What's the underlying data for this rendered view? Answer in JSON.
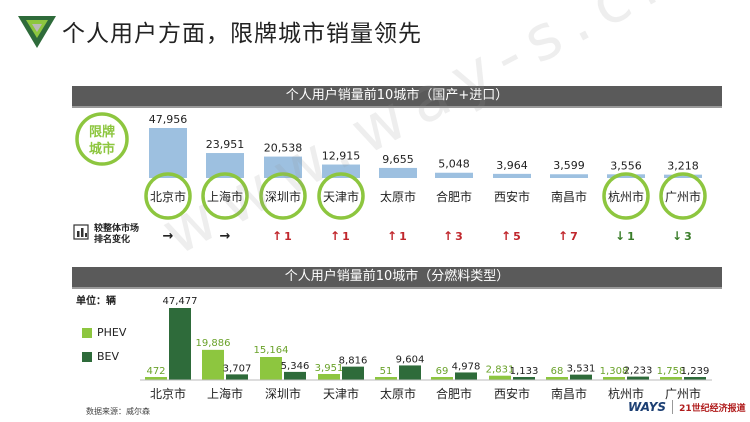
{
  "page": {
    "title": "个人用户方面，限牌城市销量领先",
    "source": "数据来源：威尔森",
    "brand_ways": "WAYS",
    "brand_news": "21世纪经济报道",
    "watermark": "www.way-s.cn"
  },
  "colors": {
    "top_bar": "#9dc0e0",
    "phev": "#8dc63f",
    "bev": "#2e6b3a",
    "circle": "#8dc63f",
    "banner": "#5a5a5a",
    "up_arrow": "#c0262c",
    "down_arrow": "#3a7d2a"
  },
  "chart_data": [
    {
      "type": "bar",
      "title": "个人用户销量前10城市（国产+进口）",
      "categories": [
        "北京市",
        "上海市",
        "深圳市",
        "天津市",
        "太原市",
        "合肥市",
        "西安市",
        "南昌市",
        "杭州市",
        "广州市"
      ],
      "values": [
        47956,
        23951,
        20538,
        12915,
        9655,
        5048,
        3964,
        3599,
        3556,
        3218
      ],
      "value_labels": [
        "47,956",
        "23,951",
        "20,538",
        "12,915",
        "9,655",
        "5,048",
        "3,964",
        "3,599",
        "3,556",
        "3,218"
      ],
      "restricted_label": "限牌城市",
      "restricted": [
        true,
        true,
        true,
        true,
        false,
        false,
        false,
        false,
        true,
        true
      ],
      "rank_change_label": "较整体市场排名变化",
      "rank_change": [
        {
          "dir": "same",
          "text": ""
        },
        {
          "dir": "same",
          "text": ""
        },
        {
          "dir": "up",
          "text": "1"
        },
        {
          "dir": "up",
          "text": "1"
        },
        {
          "dir": "up",
          "text": "1"
        },
        {
          "dir": "up",
          "text": "3"
        },
        {
          "dir": "up",
          "text": "5"
        },
        {
          "dir": "up",
          "text": "7"
        },
        {
          "dir": "down",
          "text": "1"
        },
        {
          "dir": "down",
          "text": "3"
        }
      ]
    },
    {
      "type": "bar",
      "title": "个人用户销量前10城市（分燃料类型）",
      "unit": "单位：辆",
      "categories": [
        "北京市",
        "上海市",
        "深圳市",
        "天津市",
        "太原市",
        "合肥市",
        "西安市",
        "南昌市",
        "杭州市",
        "广州市"
      ],
      "series": [
        {
          "name": "PHEV",
          "values": [
            472,
            19886,
            15164,
            3951,
            51,
            69,
            2831,
            68,
            1308,
            1758
          ],
          "labels": [
            "472",
            "19,886",
            "15,164",
            "3,951",
            "51",
            "69",
            "2,831",
            "68",
            "1,308",
            "1,758"
          ]
        },
        {
          "name": "BEV",
          "values": [
            47477,
            3707,
            5346,
            8816,
            9604,
            4978,
            1133,
            3531,
            2233,
            1239
          ],
          "labels": [
            "47,477",
            "3,707",
            "5,346",
            "8,816",
            "9,604",
            "4,978",
            "1,133",
            "3,531",
            "2,233",
            "1,239"
          ]
        }
      ]
    }
  ]
}
